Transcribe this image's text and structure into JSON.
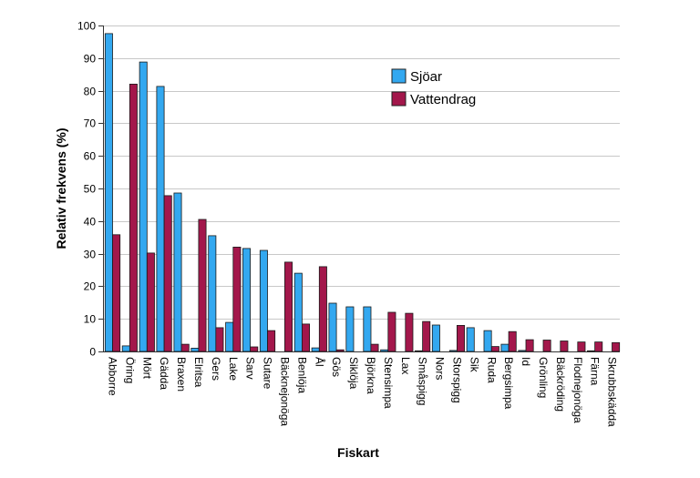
{
  "chart_data": {
    "type": "bar",
    "title": "",
    "xlabel": "Fiskart",
    "ylabel": "Relativ frekvens (%)",
    "ylim": [
      0,
      100
    ],
    "yticks": [
      0,
      10,
      20,
      30,
      40,
      50,
      60,
      70,
      80,
      90,
      100
    ],
    "grid": true,
    "legend_position": "top-center",
    "categories": [
      "Abborre",
      "Öring",
      "Mört",
      "Gädda",
      "Braxen",
      "Elritsa",
      "Gers",
      "Lake",
      "Sarv",
      "Sutare",
      "Bäcknejonöga",
      "Benlöja",
      "Ål",
      "Gös",
      "Siklöja",
      "Björkna",
      "Stensimpa",
      "Lax",
      "Småspigg",
      "Nors",
      "Storspigg",
      "Sik",
      "Ruda",
      "Bergsimpa",
      "Id",
      "Grönling",
      "Bäckröding",
      "Flodnejonöga",
      "Färna",
      "Skrubbskädda"
    ],
    "series": [
      {
        "name": "Sjöar",
        "color": "#33A8F0",
        "values": [
          97.5,
          1.7,
          88.8,
          81.3,
          48.6,
          1.0,
          35.5,
          8.9,
          31.6,
          31.0,
          0.0,
          24.0,
          1.1,
          14.8,
          13.7,
          13.7,
          0.5,
          0.0,
          0.2,
          8.1,
          0.3,
          7.3,
          6.4,
          2.2,
          0.3,
          0.0,
          0.0,
          0.0,
          0.2,
          0.0
        ]
      },
      {
        "name": "Vattendrag",
        "color": "#A3174B",
        "values": [
          35.8,
          82.0,
          30.2,
          47.8,
          2.2,
          40.5,
          7.3,
          32.0,
          1.4,
          6.4,
          27.4,
          8.4,
          26.0,
          0.5,
          0.0,
          2.2,
          12.0,
          11.7,
          9.2,
          0.0,
          8.0,
          0.0,
          1.5,
          6.1,
          3.6,
          3.5,
          3.2,
          2.9,
          2.9,
          2.7
        ]
      }
    ]
  }
}
